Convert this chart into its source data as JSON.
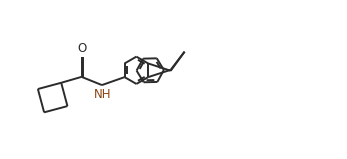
{
  "bg_color": "#ffffff",
  "bond_color": "#2b2b2b",
  "lw": 1.4,
  "dbo": 0.055,
  "fs": 8.5,
  "NH_color": "#8B4513",
  "O_color": "#2b2b2b",
  "xlim": [
    -0.5,
    9.5
  ],
  "ylim": [
    -0.3,
    4.5
  ]
}
